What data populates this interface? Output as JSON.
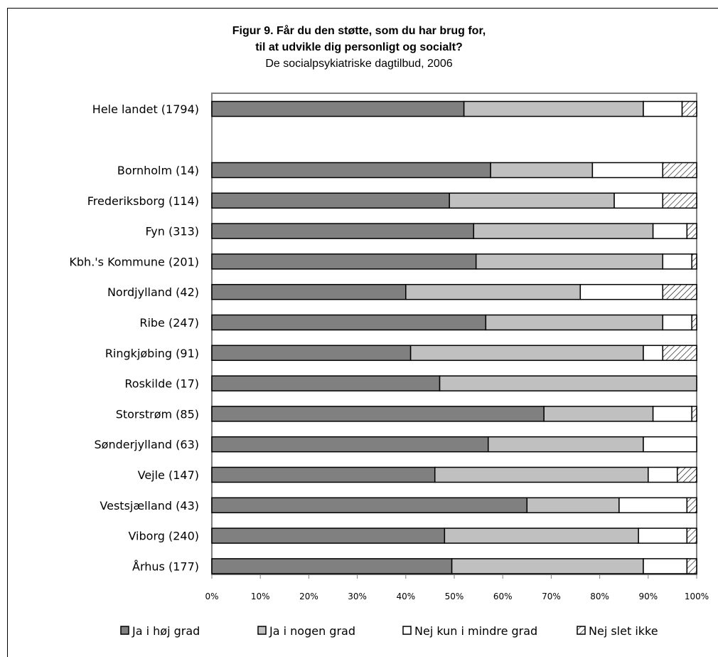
{
  "chart_data": {
    "type": "bar",
    "orientation": "horizontal",
    "stacked": true,
    "title": "Figur 9. Får du den støtte, som du har brug for,",
    "title_line2": "til at udvikle dig personligt og socialt?",
    "subtitle": "De socialpsykiatriske dagtilbud, 2006",
    "xlim": [
      0,
      100
    ],
    "x_ticks": [
      "0%",
      "10%",
      "20%",
      "30%",
      "40%",
      "50%",
      "60%",
      "70%",
      "80%",
      "90%",
      "100%"
    ],
    "legend_position": "bottom",
    "categories": [
      "Hele landet (1794)",
      "Bornholm (14)",
      "Frederiksborg (114)",
      "Fyn (313)",
      "Kbh.'s Kommune (201)",
      "Nordjylland (42)",
      "Ribe (247)",
      "Ringkjøbing (91)",
      "Roskilde (17)",
      "Storstrøm (85)",
      "Sønderjylland (63)",
      "Vejle (147)",
      "Vestsjælland (43)",
      "Viborg (240)",
      "Århus (177)"
    ],
    "series": [
      {
        "name": "Ja i høj grad",
        "color": "#808080",
        "values": [
          52,
          57.5,
          49,
          54,
          54.5,
          40,
          56.5,
          41,
          47,
          68.5,
          57,
          46,
          65,
          48,
          49.5
        ]
      },
      {
        "name": "Ja i nogen grad",
        "color": "#c0c0c0",
        "values": [
          37,
          21,
          34,
          37,
          38.5,
          36,
          36.5,
          48,
          53,
          22.5,
          32,
          44,
          19,
          40,
          39.5
        ]
      },
      {
        "name": "Nej kun i mindre grad",
        "color": "#ffffff",
        "values": [
          8,
          14.5,
          10,
          7,
          6,
          17,
          6,
          4,
          0,
          8,
          11,
          6,
          14,
          10,
          9
        ]
      },
      {
        "name": "Nej slet ikke",
        "color": "hatch",
        "values": [
          3,
          7,
          7,
          2,
          1,
          7,
          1,
          7,
          0,
          1,
          0,
          4,
          2,
          2,
          2
        ]
      }
    ],
    "gap_after_first": true
  }
}
